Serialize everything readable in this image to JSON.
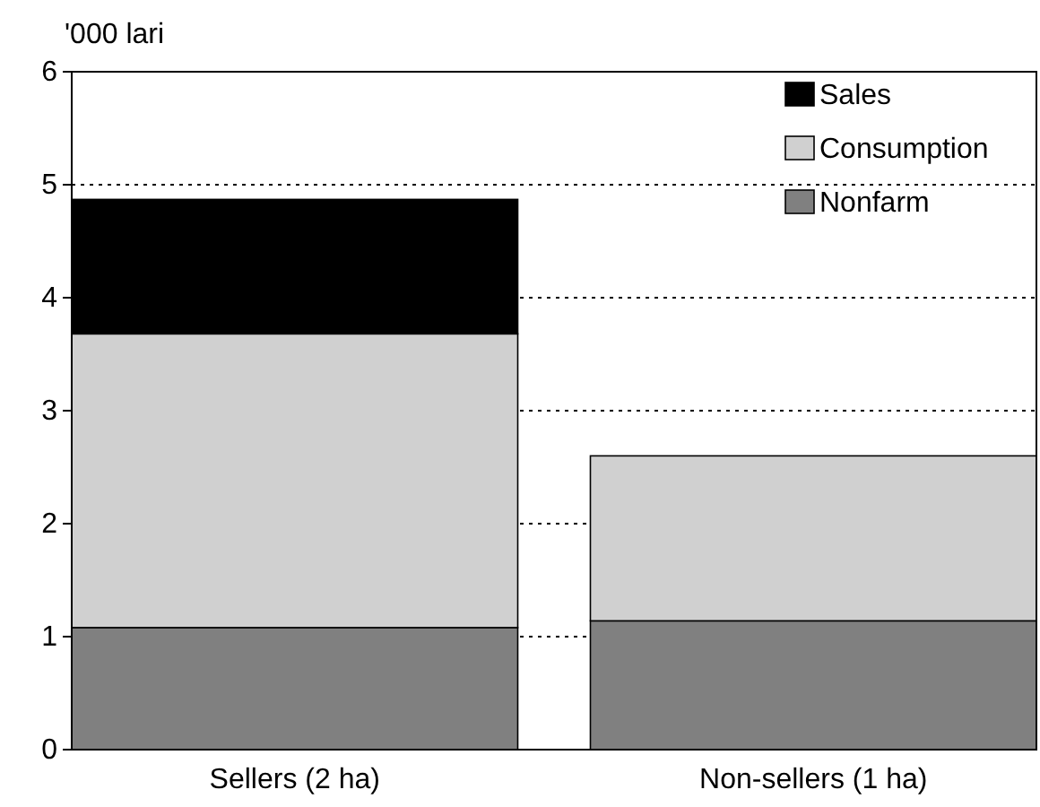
{
  "chart_data": {
    "type": "bar",
    "ylabel": "'000 lari",
    "categories": [
      "Sellers (2 ha)",
      "Non-sellers (1 ha)"
    ],
    "stacked": true,
    "series": [
      {
        "name": "Nonfarm",
        "color": "#808080",
        "values": [
          1.08,
          1.14
        ]
      },
      {
        "name": "Consumption",
        "color": "#d0d0d0",
        "values": [
          2.6,
          1.46
        ]
      },
      {
        "name": "Sales",
        "color": "#000000",
        "values": [
          1.19,
          null
        ]
      }
    ],
    "ylim": [
      0,
      6
    ],
    "yticks": [
      0,
      1,
      2,
      3,
      4,
      5,
      6
    ],
    "grid": "y",
    "legend": "top right"
  }
}
